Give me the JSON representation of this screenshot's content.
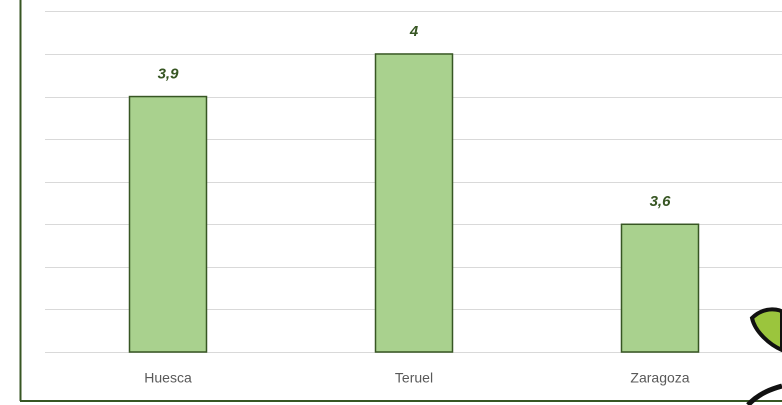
{
  "chart_data": {
    "type": "bar",
    "categories": [
      "Huesca",
      "Teruel",
      "Zaragoza"
    ],
    "values": [
      3.9,
      4,
      3.6
    ],
    "value_labels": [
      "3,9",
      "4",
      "3,6"
    ],
    "color": "#a9d18e",
    "ylim": [
      3.3,
      4.1
    ],
    "yticks": [
      3.3,
      3.4,
      3.5,
      3.6,
      3.7,
      3.8,
      3.9,
      4,
      4.1
    ],
    "grid": true
  }
}
